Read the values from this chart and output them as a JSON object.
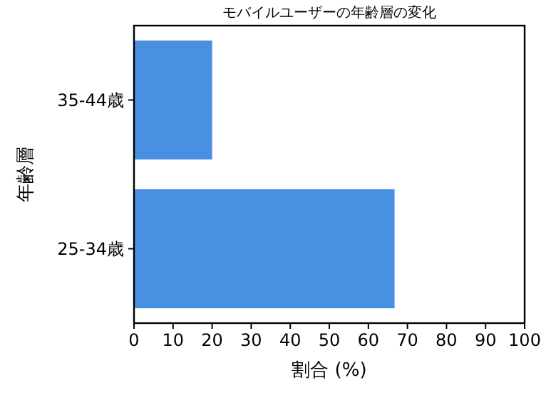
{
  "chart_data": {
    "type": "bar",
    "orientation": "horizontal",
    "title": "モバイルユーザーの年齢層の変化",
    "xlabel": "割合 (%)",
    "ylabel": "年齢層",
    "categories": [
      "35-44歳",
      "25-34歳"
    ],
    "values": [
      20,
      66.7
    ],
    "color": "#4a90e2",
    "xlim": [
      0,
      100
    ],
    "xticks": [
      0,
      10,
      20,
      30,
      40,
      50,
      60,
      70,
      80,
      90,
      100
    ]
  }
}
